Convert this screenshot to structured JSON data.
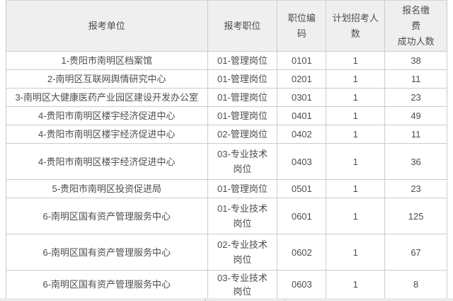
{
  "colors": {
    "header_bg": "#efefef",
    "row_bg": "#ffffff",
    "border": "#cbcbcb",
    "text": "#4d4d4d",
    "below_strip": "#eaeaea"
  },
  "table": {
    "columns": [
      {
        "id": "unit",
        "lines": [
          "报考单位"
        ]
      },
      {
        "id": "position",
        "lines": [
          "报考职位"
        ]
      },
      {
        "id": "code",
        "lines": [
          "职位编",
          "码"
        ]
      },
      {
        "id": "planned",
        "lines": [
          "计划招考人",
          "数"
        ]
      },
      {
        "id": "paid",
        "lines": [
          "报名缴",
          "费",
          "成功人数"
        ]
      }
    ],
    "rows": [
      {
        "unit": "1-贵阳市南明区档案馆",
        "position": "01-管理岗位",
        "code": "0101",
        "planned": "1",
        "paid": "38"
      },
      {
        "unit": "2-南明区互联网舆情研究中心",
        "position": "01-管理岗位",
        "code": "0201",
        "planned": "1",
        "paid": "11"
      },
      {
        "unit": "3-南明区大健康医药产业园区建设开发办公室",
        "position": "01-管理岗位",
        "code": "0301",
        "planned": "1",
        "paid": "23"
      },
      {
        "unit": "4-贵阳市南明区楼宇经济促进中心",
        "position": "01-管理岗位",
        "code": "0401",
        "planned": "1",
        "paid": "49"
      },
      {
        "unit": "4-贵阳市南明区楼宇经济促进中心",
        "position": "02-管理岗位",
        "code": "0402",
        "planned": "1",
        "paid": "11"
      },
      {
        "unit": "4-贵阳市南明区楼宇经济促进中心",
        "position": "03-专业技术岗位",
        "code": "0403",
        "planned": "1",
        "paid": "36"
      },
      {
        "unit": "5-贵阳市南明区投资促进局",
        "position": "01-管理岗位",
        "code": "0501",
        "planned": "1",
        "paid": "23"
      },
      {
        "unit": "6-南明区国有资产管理服务中心",
        "position": "01-专业技术岗位",
        "code": "0601",
        "planned": "1",
        "paid": "125"
      },
      {
        "unit": "6-南明区国有资产管理服务中心",
        "position": "02-专业技术岗位",
        "code": "0602",
        "planned": "1",
        "paid": "67"
      },
      {
        "unit": "6-南明区国有资产管理服务中心",
        "position": "03-专业技术岗位",
        "code": "0603",
        "planned": "1",
        "paid": "8"
      }
    ]
  },
  "chart_data": {
    "type": "table",
    "columns": [
      "报考单位",
      "报考职位",
      "职位编码",
      "计划招考人数",
      "报名缴费成功人数"
    ],
    "rows": [
      [
        "1-贵阳市南明区档案馆",
        "01-管理岗位",
        "0101",
        1,
        38
      ],
      [
        "2-南明区互联网舆情研究中心",
        "01-管理岗位",
        "0201",
        1,
        11
      ],
      [
        "3-南明区大健康医药产业园区建设开发办公室",
        "01-管理岗位",
        "0301",
        1,
        23
      ],
      [
        "4-贵阳市南明区楼宇经济促进中心",
        "01-管理岗位",
        "0401",
        1,
        49
      ],
      [
        "4-贵阳市南明区楼宇经济促进中心",
        "02-管理岗位",
        "0402",
        1,
        11
      ],
      [
        "4-贵阳市南明区楼宇经济促进中心",
        "03-专业技术岗位",
        "0403",
        1,
        36
      ],
      [
        "5-贵阳市南明区投资促进局",
        "01-管理岗位",
        "0501",
        1,
        23
      ],
      [
        "6-南明区国有资产管理服务中心",
        "01-专业技术岗位",
        "0601",
        1,
        125
      ],
      [
        "6-南明区国有资产管理服务中心",
        "02-专业技术岗位",
        "0602",
        1,
        67
      ],
      [
        "6-南明区国有资产管理服务中心",
        "03-专业技术岗位",
        "0603",
        1,
        8
      ]
    ]
  }
}
